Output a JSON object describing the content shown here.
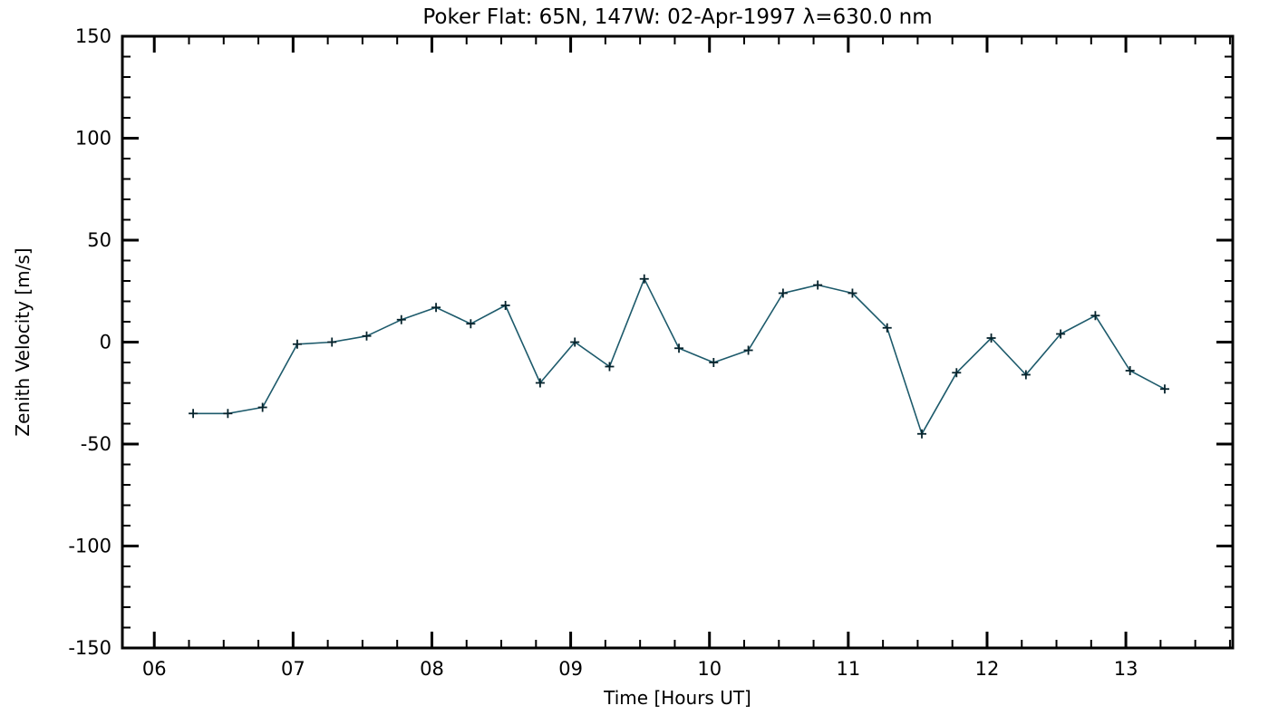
{
  "window": {
    "background_color": "#ffffff"
  },
  "chart_data": {
    "type": "line",
    "title": "Poker Flat: 65N, 147W: 02-Apr-1997 λ=630.0 nm",
    "xlabel": "Time [Hours UT]",
    "ylabel": "Zenith Velocity [m/s]",
    "xlim": [
      5.77,
      13.77
    ],
    "ylim": [
      -150,
      150
    ],
    "xticks": [
      {
        "value": 6,
        "label": "06"
      },
      {
        "value": 7,
        "label": "07"
      },
      {
        "value": 8,
        "label": "08"
      },
      {
        "value": 9,
        "label": "09"
      },
      {
        "value": 10,
        "label": "10"
      },
      {
        "value": 11,
        "label": "11"
      },
      {
        "value": 12,
        "label": "12"
      },
      {
        "value": 13,
        "label": "13"
      }
    ],
    "yticks": [
      {
        "value": -150,
        "label": "-150"
      },
      {
        "value": -100,
        "label": "-100"
      },
      {
        "value": -50,
        "label": "-50"
      },
      {
        "value": 0,
        "label": "0"
      },
      {
        "value": 50,
        "label": "50"
      },
      {
        "value": 100,
        "label": "100"
      },
      {
        "value": 150,
        "label": "150"
      }
    ],
    "x_minor_step": 0.25,
    "y_minor_step": 10,
    "grid": false,
    "legend": "none",
    "marker": "plus",
    "line_color": "#1d5a6b",
    "marker_color": "#06232c",
    "axis_color": "#000000",
    "series": [
      {
        "name": "zenith-velocity",
        "points": [
          [
            6.28,
            -35
          ],
          [
            6.53,
            -35
          ],
          [
            6.78,
            -32
          ],
          [
            7.03,
            -1
          ],
          [
            7.28,
            0
          ],
          [
            7.53,
            3
          ],
          [
            7.78,
            11
          ],
          [
            8.03,
            17
          ],
          [
            8.28,
            9
          ],
          [
            8.53,
            18
          ],
          [
            8.78,
            -20
          ],
          [
            9.03,
            0
          ],
          [
            9.28,
            -12
          ],
          [
            9.53,
            31
          ],
          [
            9.78,
            -3
          ],
          [
            10.03,
            -10
          ],
          [
            10.28,
            -4
          ],
          [
            10.53,
            24
          ],
          [
            10.78,
            28
          ],
          [
            11.03,
            24
          ],
          [
            11.28,
            7
          ],
          [
            11.53,
            -45
          ],
          [
            11.78,
            -15
          ],
          [
            12.03,
            2
          ],
          [
            12.28,
            -16
          ],
          [
            12.53,
            4
          ],
          [
            12.78,
            13
          ],
          [
            13.03,
            -14
          ],
          [
            13.28,
            -23
          ]
        ]
      }
    ]
  }
}
